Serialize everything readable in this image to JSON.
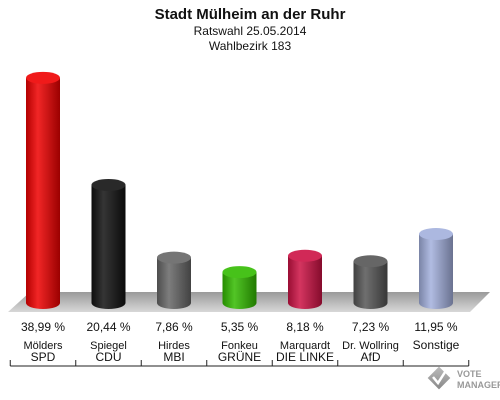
{
  "chart_data": {
    "type": "bar",
    "title": "Stadt Mülheim an der Ruhr",
    "subtitle_lines": [
      "Ratswahl 25.05.2014",
      "Wahlbezirk 183"
    ],
    "categories": [
      {
        "candidate": "Mölders",
        "party": "SPD"
      },
      {
        "candidate": "Spiegel",
        "party": "CDU"
      },
      {
        "candidate": "Hirdes",
        "party": "MBI"
      },
      {
        "candidate": "Fonkeu",
        "party": "GRÜNE"
      },
      {
        "candidate": "Marquardt",
        "party": "DIE LINKE"
      },
      {
        "candidate": "Dr. Wollring",
        "party": "AfD"
      },
      {
        "candidate": "",
        "party": "Sonstige"
      }
    ],
    "values": [
      38.99,
      20.44,
      7.86,
      5.35,
      8.18,
      7.23,
      11.95
    ],
    "value_labels": [
      "38,99 %",
      "20,44 %",
      "7,86 %",
      "5,35 %",
      "8,18 %",
      "7,23 %",
      "11,95 %"
    ],
    "colors": [
      "#ee0000",
      "#111111",
      "#666666",
      "#33bb00",
      "#cc1144",
      "#555555",
      "#a3b0dd"
    ],
    "ylim": [
      0,
      40
    ],
    "grid": false,
    "legend": "none"
  },
  "watermark": "VOTE MANAGER"
}
